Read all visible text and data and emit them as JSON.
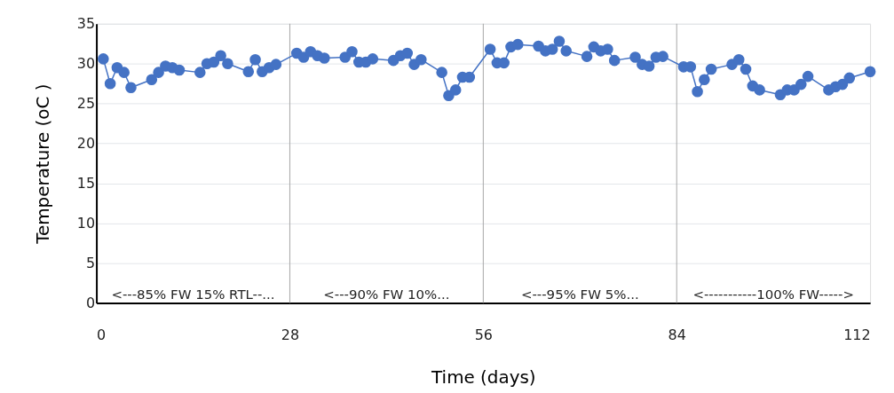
{
  "chart_data": {
    "type": "line",
    "xlabel": "Time (days)",
    "ylabel": "Temperature (oC )",
    "x": [
      1,
      2,
      3,
      4,
      5,
      8,
      9,
      10,
      11,
      12,
      15,
      16,
      17,
      18,
      19,
      22,
      23,
      24,
      25,
      26,
      29,
      30,
      31,
      32,
      33,
      36,
      37,
      38,
      39,
      40,
      43,
      44,
      45,
      46,
      47,
      50,
      51,
      52,
      53,
      54,
      57,
      58,
      59,
      60,
      61,
      64,
      65,
      66,
      67,
      68,
      71,
      72,
      73,
      74,
      75,
      78,
      79,
      80,
      81,
      82,
      85,
      86,
      87,
      88,
      89,
      92,
      93,
      94,
      95,
      96,
      99,
      100,
      101,
      102,
      103,
      106,
      107,
      108,
      109,
      112
    ],
    "series": [
      {
        "color": "#4472c4",
        "values": [
          30.6,
          27.5,
          29.5,
          28.9,
          27.0,
          28.0,
          28.9,
          29.7,
          29.5,
          29.2,
          28.9,
          30.0,
          30.2,
          31.0,
          30.0,
          29.0,
          30.5,
          29.0,
          29.5,
          29.9,
          31.3,
          30.8,
          31.5,
          31.0,
          30.7,
          30.8,
          31.5,
          30.2,
          30.2,
          30.6,
          30.4,
          31.0,
          31.3,
          29.9,
          30.5,
          28.9,
          26.0,
          26.7,
          28.3,
          28.3,
          31.8,
          30.1,
          30.1,
          32.1,
          32.4,
          32.2,
          31.6,
          31.8,
          32.8,
          31.6,
          30.9,
          32.1,
          31.6,
          31.8,
          30.4,
          30.8,
          29.9,
          29.7,
          30.8,
          30.9,
          29.6,
          29.6,
          26.5,
          28.0,
          29.3,
          29.9,
          30.5,
          29.3,
          27.2,
          26.7,
          26.1,
          26.7,
          26.7,
          27.4,
          28.4,
          26.7,
          27.1,
          27.4,
          28.2,
          29.0
        ]
      }
    ],
    "xlim": [
      0,
      112
    ],
    "xticks": [
      0,
      28,
      56,
      84,
      112
    ],
    "ylim": [
      0,
      35
    ],
    "yticks": [
      0,
      5,
      10,
      15,
      20,
      25,
      30,
      35
    ],
    "grid": "y",
    "marker": "circle",
    "line_style": "solid",
    "ref_lines": [
      {
        "axis": "x",
        "value": 28,
        "color": "#a6a6a6"
      },
      {
        "axis": "x",
        "value": 56,
        "color": "#a6a6a6"
      },
      {
        "axis": "x",
        "value": 84,
        "color": "#a6a6a6"
      }
    ],
    "annotations": [
      "<---85% FW  15% RTL--...",
      "<---90% FW  10%...",
      "<---95% FW  5%...",
      "<-----------100% FW----->"
    ]
  }
}
